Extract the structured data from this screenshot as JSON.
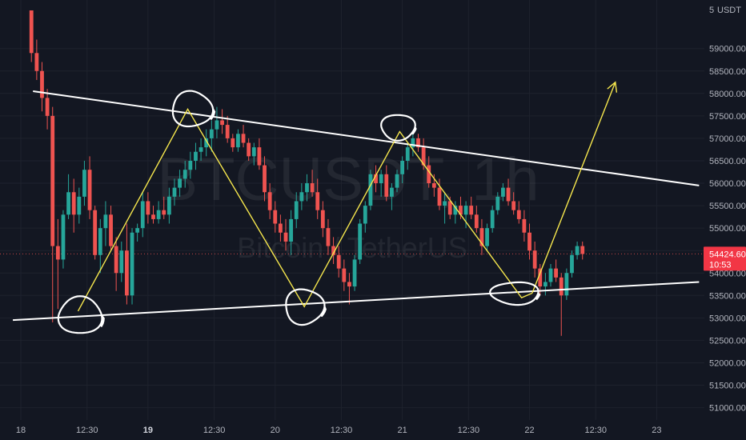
{
  "chart_data": {
    "type": "candlestick",
    "symbol_watermark": "BTCUSDT, 1h",
    "pair_watermark": "Bitcoin / TetherUS",
    "currency": "USDT",
    "price_axis_top_partial": "5",
    "y_ticks": [
      "59000.00",
      "58500.00",
      "58000.00",
      "57500.00",
      "57000.00",
      "56500.00",
      "56000.00",
      "55500.00",
      "55000.00",
      "54500.00",
      "54000.00",
      "53500.00",
      "53000.00",
      "52500.00",
      "52000.00",
      "51500.00",
      "51000.00"
    ],
    "ylim": [
      50850,
      59850
    ],
    "x_ticks": [
      {
        "label": "18",
        "hour": 0,
        "bold": false
      },
      {
        "label": "12:30",
        "hour": 12.5,
        "bold": false
      },
      {
        "label": "19",
        "hour": 24,
        "bold": true
      },
      {
        "label": "12:30",
        "hour": 36.5,
        "bold": false
      },
      {
        "label": "20",
        "hour": 48,
        "bold": false
      },
      {
        "label": "12:30",
        "hour": 60.5,
        "bold": false
      },
      {
        "label": "21",
        "hour": 72,
        "bold": false
      },
      {
        "label": "12:30",
        "hour": 84.5,
        "bold": false
      },
      {
        "label": "22",
        "hour": 96,
        "bold": false
      },
      {
        "label": "12:30",
        "hour": 108.5,
        "bold": false
      },
      {
        "label": "23",
        "hour": 120,
        "bold": false
      }
    ],
    "current_price": {
      "value": "54424.60",
      "countdown": "10:53",
      "price": 54424.6
    },
    "candles_start_hour": 2,
    "candles": [
      [
        59850,
        59850,
        58700,
        58900
      ],
      [
        58900,
        59200,
        58300,
        58500
      ],
      [
        58500,
        58700,
        57600,
        57900
      ],
      [
        57900,
        58100,
        57200,
        57500
      ],
      [
        57500,
        57700,
        52900,
        54600
      ],
      [
        54600,
        55200,
        53200,
        54300
      ],
      [
        54300,
        55400,
        54100,
        55300
      ],
      [
        55300,
        56200,
        55200,
        55800
      ],
      [
        55800,
        56100,
        54900,
        55300
      ],
      [
        55300,
        55900,
        55100,
        55700
      ],
      [
        55700,
        56500,
        55500,
        56300
      ],
      [
        56300,
        56600,
        55200,
        55400
      ],
      [
        55400,
        55500,
        54300,
        54400
      ],
      [
        54400,
        55200,
        54000,
        55000
      ],
      [
        55000,
        55600,
        54600,
        55300
      ],
      [
        55300,
        55500,
        54500,
        54600
      ],
      [
        54600,
        54800,
        53600,
        54000
      ],
      [
        54000,
        54700,
        53800,
        54500
      ],
      [
        54500,
        55100,
        53300,
        53500
      ],
      [
        53500,
        55000,
        53300,
        54900
      ],
      [
        54900,
        55100,
        54700,
        55000
      ],
      [
        55000,
        55800,
        54800,
        55600
      ],
      [
        55600,
        55800,
        55100,
        55300
      ],
      [
        55300,
        55500,
        55100,
        55200
      ],
      [
        55200,
        55600,
        55100,
        55400
      ],
      [
        55400,
        55700,
        55200,
        55300
      ],
      [
        55300,
        55900,
        55100,
        55700
      ],
      [
        55700,
        56100,
        55500,
        55900
      ],
      [
        55900,
        56300,
        55700,
        56100
      ],
      [
        56100,
        56500,
        55900,
        56300
      ],
      [
        56300,
        56700,
        56100,
        56500
      ],
      [
        56500,
        56900,
        56300,
        56700
      ],
      [
        56700,
        57000,
        56500,
        56800
      ],
      [
        56800,
        57200,
        56600,
        57000
      ],
      [
        57000,
        57400,
        56700,
        57200
      ],
      [
        57200,
        57700,
        57000,
        57400
      ],
      [
        57400,
        57650,
        57100,
        57300
      ],
      [
        57300,
        57500,
        56900,
        57000
      ],
      [
        57000,
        57100,
        56700,
        56800
      ],
      [
        56800,
        57200,
        56700,
        57100
      ],
      [
        57100,
        57300,
        56800,
        56900
      ],
      [
        56900,
        57000,
        56500,
        56600
      ],
      [
        56600,
        56900,
        56400,
        56800
      ],
      [
        56800,
        57000,
        56300,
        56400
      ],
      [
        56400,
        56600,
        55600,
        55800
      ],
      [
        55800,
        56000,
        55200,
        55400
      ],
      [
        55400,
        55600,
        54900,
        55100
      ],
      [
        55100,
        55300,
        54700,
        54900
      ],
      [
        54900,
        55200,
        54500,
        54700
      ],
      [
        54700,
        55400,
        54400,
        55200
      ],
      [
        55200,
        55800,
        55000,
        55600
      ],
      [
        55600,
        56000,
        55400,
        55800
      ],
      [
        55800,
        56200,
        55600,
        56000
      ],
      [
        56000,
        56300,
        55700,
        55800
      ],
      [
        55800,
        56100,
        55200,
        55400
      ],
      [
        55400,
        55600,
        54800,
        55000
      ],
      [
        55000,
        55200,
        54400,
        54600
      ],
      [
        54600,
        54800,
        54200,
        54400
      ],
      [
        54400,
        54600,
        53900,
        54100
      ],
      [
        54100,
        54300,
        53600,
        53800
      ],
      [
        53800,
        54000,
        53300,
        53700
      ],
      [
        53700,
        54400,
        53600,
        54300
      ],
      [
        54300,
        55200,
        54200,
        55100
      ],
      [
        55100,
        55600,
        54900,
        55500
      ],
      [
        55500,
        56300,
        55400,
        56200
      ],
      [
        56200,
        56400,
        55800,
        56000
      ],
      [
        56000,
        56300,
        55700,
        56200
      ],
      [
        56200,
        56400,
        55600,
        55700
      ],
      [
        55700,
        56000,
        55400,
        55900
      ],
      [
        55900,
        56300,
        55800,
        56200
      ],
      [
        56200,
        56600,
        56000,
        56500
      ],
      [
        56500,
        56900,
        56300,
        56800
      ],
      [
        56800,
        57150,
        56600,
        57000
      ],
      [
        57000,
        57100,
        56700,
        56800
      ],
      [
        56800,
        57000,
        56300,
        56400
      ],
      [
        56400,
        56600,
        55900,
        56000
      ],
      [
        56000,
        56200,
        55700,
        55900
      ],
      [
        55900,
        56100,
        55400,
        55500
      ],
      [
        55500,
        55800,
        55100,
        55600
      ],
      [
        55600,
        55700,
        55200,
        55300
      ],
      [
        55300,
        55600,
        55100,
        55500
      ],
      [
        55500,
        55700,
        55200,
        55300
      ],
      [
        55300,
        55600,
        55000,
        55500
      ],
      [
        55500,
        55700,
        55200,
        55300
      ],
      [
        55300,
        55500,
        54900,
        55000
      ],
      [
        55000,
        55200,
        54400,
        54600
      ],
      [
        54600,
        55100,
        54500,
        55000
      ],
      [
        55000,
        55500,
        54900,
        55400
      ],
      [
        55400,
        55800,
        55300,
        55700
      ],
      [
        55700,
        56000,
        55600,
        55900
      ],
      [
        55900,
        56100,
        55500,
        55600
      ],
      [
        55600,
        55800,
        55300,
        55400
      ],
      [
        55400,
        55600,
        55100,
        55200
      ],
      [
        55200,
        55400,
        54700,
        54900
      ],
      [
        54900,
        55100,
        54300,
        54500
      ],
      [
        54500,
        54700,
        53900,
        54100
      ],
      [
        54100,
        54200,
        53500,
        53700
      ],
      [
        53700,
        54000,
        53500,
        53800
      ],
      [
        53800,
        54200,
        53700,
        54100
      ],
      [
        54100,
        54300,
        53800,
        53900
      ],
      [
        53900,
        54000,
        52600,
        53500
      ],
      [
        53500,
        54100,
        53400,
        54000
      ],
      [
        54000,
        54500,
        53900,
        54400
      ],
      [
        54400,
        54700,
        54300,
        54600
      ],
      [
        54600,
        54700,
        54300,
        54424.6
      ]
    ],
    "annotations": {
      "resistance_line": {
        "start": [
          2.3,
          58050
        ],
        "end": [
          128,
          55950
        ]
      },
      "support_line": {
        "start": [
          -1.5,
          52950
        ],
        "end": [
          128,
          53800
        ]
      },
      "zigzag": [
        [
          10.8,
          53150
        ],
        [
          31.5,
          57650
        ],
        [
          53.5,
          53250
        ],
        [
          71.5,
          57150
        ],
        [
          94.5,
          53450
        ],
        [
          96.5,
          53550
        ]
      ],
      "projection": {
        "start": [
          96.5,
          53550
        ],
        "end": [
          112.2,
          58250
        ]
      },
      "circles": [
        {
          "center": [
            11.2,
            53050
          ],
          "r": [
            27,
            23
          ]
        },
        {
          "center": [
            32.3,
            57650
          ],
          "r": [
            25,
            22
          ]
        },
        {
          "center": [
            53.5,
            53250
          ],
          "r": [
            24,
            22
          ]
        },
        {
          "center": [
            71.2,
            57250
          ],
          "r": [
            21,
            16
          ]
        },
        {
          "center": [
            93.3,
            53550
          ],
          "r": [
            30,
            14
          ]
        }
      ]
    },
    "colors": {
      "background": "#131722",
      "up": "#26a69a",
      "down": "#ef5350",
      "grid": "#1e222d",
      "axis_text": "#b2b5be",
      "trendline": "#ffffff",
      "zigzag": "#f5e64d",
      "price_tag": "#f23645"
    },
    "grid": true
  }
}
